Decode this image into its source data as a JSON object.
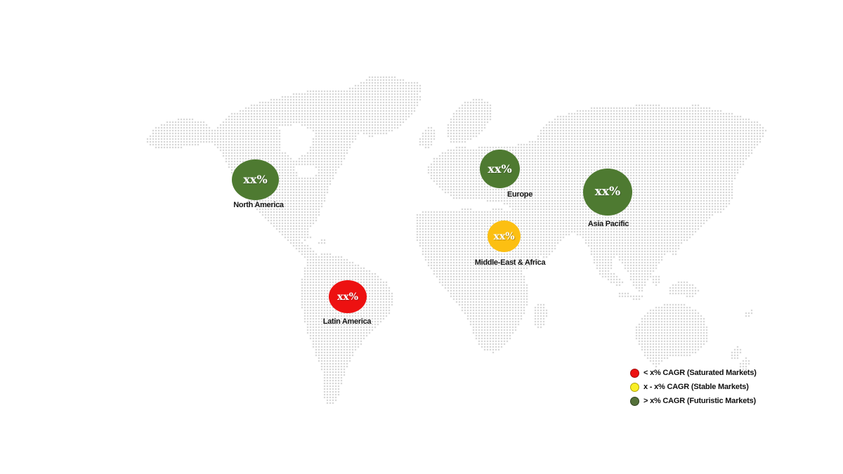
{
  "map": {
    "background_color": "#ffffff",
    "dot_color": "#cbcbcb",
    "regions": [
      {
        "name": "North America",
        "value": "xx%",
        "bubble_color": "#4e7a31",
        "value_text_color": "#ffffff",
        "legend_category": "Futuristic Markets"
      },
      {
        "name": "Latin America",
        "value": "xx%",
        "bubble_color": "#ed1111",
        "value_text_color": "#ffffff",
        "legend_category": "Saturated Markets"
      },
      {
        "name": "Europe",
        "value": "xx%",
        "bubble_color": "#4e7a31",
        "value_text_color": "#ffffff",
        "legend_category": "Futuristic Markets"
      },
      {
        "name": "Middle-East & Africa",
        "value": "xx%",
        "bubble_color": "#fcbf12",
        "value_text_color": "#ffffff",
        "legend_category": "Stable Markets"
      },
      {
        "name": "Asia Pacific",
        "value": "xx%",
        "bubble_color": "#4e7a31",
        "value_text_color": "#ffffff",
        "legend_category": "Futuristic Markets"
      }
    ]
  },
  "legend": {
    "items": [
      {
        "label": "< x% CAGR (Saturated Markets)",
        "color": "#ed1111",
        "border_color": "#a30d0d"
      },
      {
        "label": "x - x% CAGR (Stable Markets)",
        "color": "#f9ef25",
        "border_color": "#b0a307"
      },
      {
        "label": "> x% CAGR (Futuristic Markets)",
        "color": "#55713a",
        "border_color": "#2e401f"
      }
    ]
  }
}
